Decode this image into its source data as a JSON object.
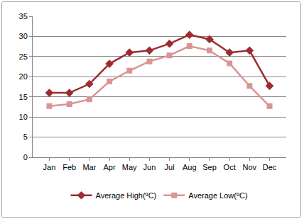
{
  "chart_data": {
    "type": "line",
    "categories": [
      "Jan",
      "Feb",
      "Mar",
      "Apr",
      "May",
      "Jun",
      "Jul",
      "Aug",
      "Sep",
      "Oct",
      "Nov",
      "Dec"
    ],
    "series": [
      {
        "name": "Average High(ºC)",
        "color": "#9c2c31",
        "marker": "diamond",
        "values": [
          16,
          16,
          18.2,
          23.2,
          26,
          26.5,
          28.2,
          30.4,
          29.3,
          26,
          26.5,
          17.7
        ]
      },
      {
        "name": "Average Low(ºC)",
        "color": "#d99594",
        "marker": "square",
        "values": [
          12.7,
          13.2,
          14.4,
          18.8,
          21.5,
          23.8,
          25.3,
          27.6,
          26.5,
          23.3,
          17.7,
          12.7
        ]
      }
    ],
    "ylim": [
      0,
      35
    ],
    "yticks": [
      0,
      5,
      10,
      15,
      20,
      25,
      30,
      35
    ],
    "grid": true,
    "legend": "bottom"
  }
}
